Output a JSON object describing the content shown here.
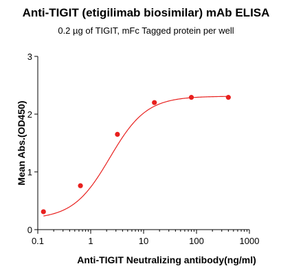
{
  "chart_data": {
    "type": "scatter",
    "title": "Anti-TIGIT (etigilimab biosimilar) mAb ELISA",
    "subtitle": "0.2 µg of TIGIT, mFc Tagged protein per well",
    "xlabel": "Anti-TIGIT Neutralizing antibody(ng/ml)",
    "ylabel": "Mean Abs.(OD450)",
    "x_scale": "log",
    "xlim": [
      0.1,
      1000
    ],
    "ylim": [
      0,
      3
    ],
    "x_ticks": [
      0.1,
      1,
      10,
      100,
      1000
    ],
    "x_tick_labels": [
      "0.1",
      "1",
      "10",
      "100",
      "1000"
    ],
    "y_ticks": [
      0,
      1,
      2,
      3
    ],
    "y_tick_labels": [
      "0",
      "1",
      "2",
      "3"
    ],
    "grid": false,
    "series": [
      {
        "color": "#e8201e",
        "x": [
          0.128,
          0.64,
          3.2,
          16,
          80,
          400
        ],
        "y": [
          0.31,
          0.76,
          1.65,
          2.2,
          2.29,
          2.29
        ],
        "fit": "4PL"
      }
    ]
  }
}
